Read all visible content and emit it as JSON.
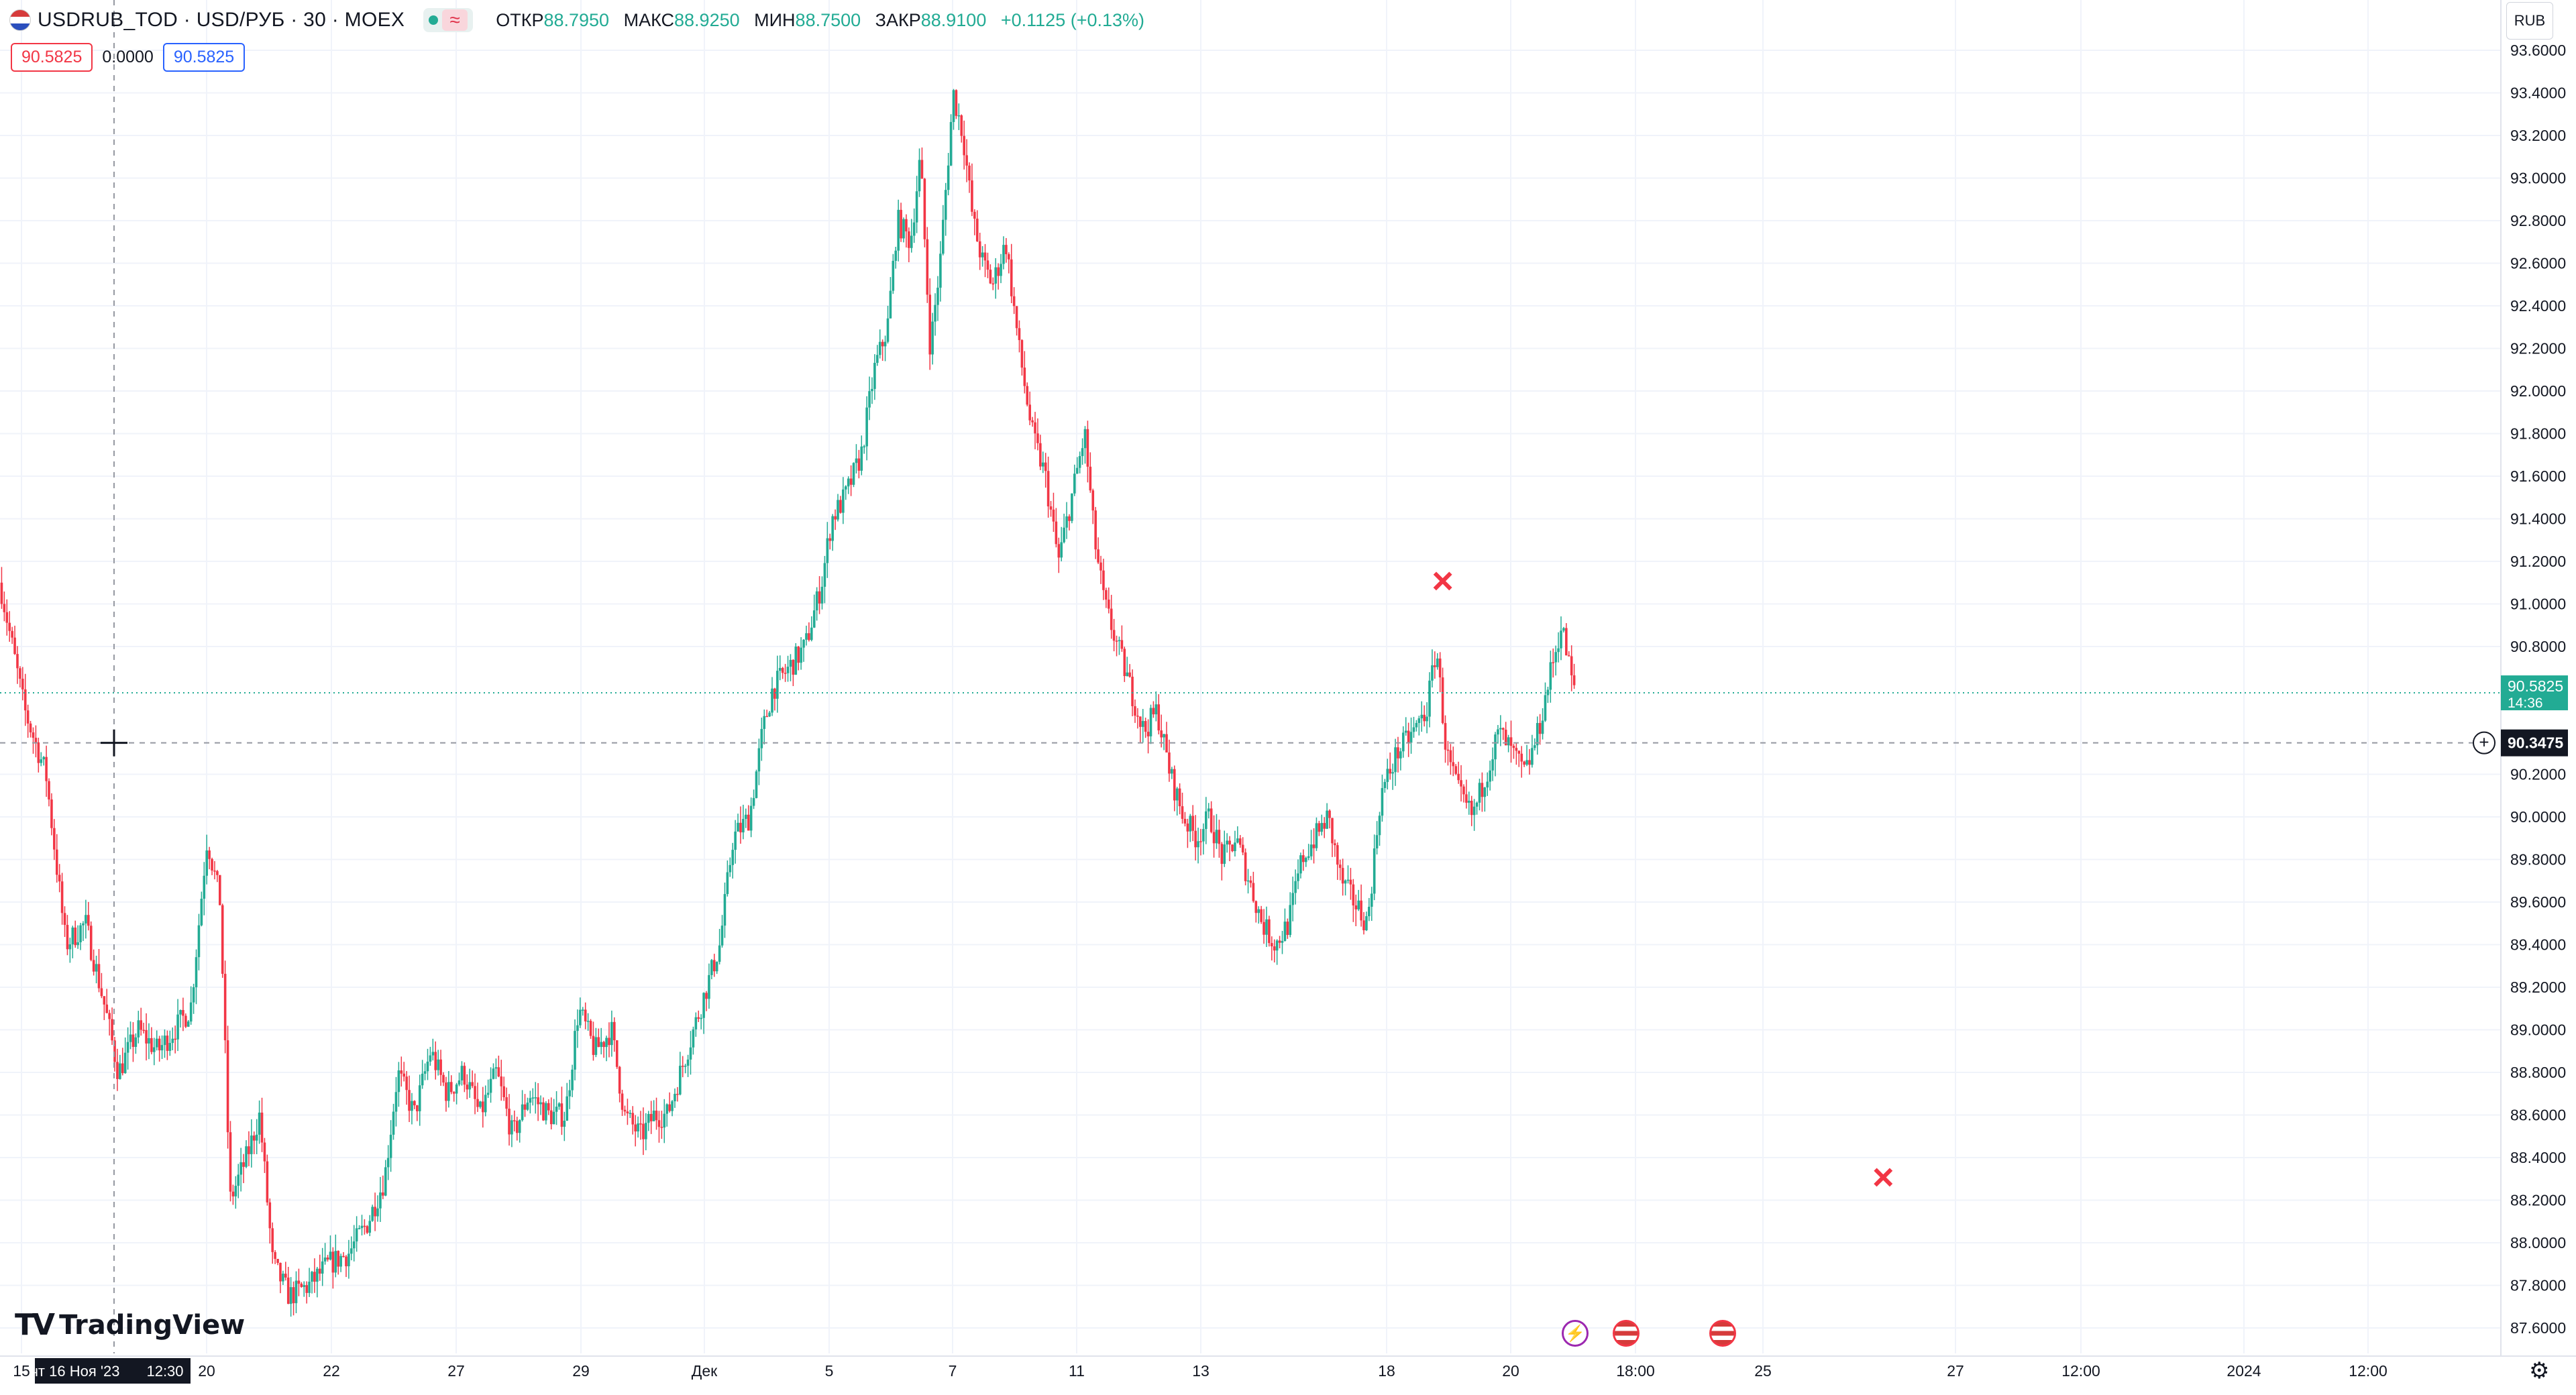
{
  "header": {
    "symbol_line": "USDRUB_TOD · USD/РУБ · 30 · MOEX",
    "open_label": "ОТКР",
    "open_value": "88.7950",
    "high_label": "МАКС",
    "high_value": "88.9250",
    "low_label": "МИН",
    "low_value": "88.7500",
    "close_label": "ЗАКР",
    "close_value": "88.9100",
    "change": "+0.1125 (+0.13%)",
    "wave_icon": "≈",
    "bid": "90.5825",
    "spread": "0.0000",
    "ask": "90.5825"
  },
  "currency": "RUB",
  "logo_text": "TradingView",
  "colors": {
    "up": "#22ab94",
    "down": "#f23645",
    "grid": "#f0f3fa",
    "crosshair": "#9598a1"
  },
  "icons": {
    "dividend_event": "lightning-icon",
    "us_events": "us-flag-icon",
    "settings": "gear-icon"
  },
  "chart_data": {
    "type": "candlestick",
    "interval": "30",
    "price_axis": {
      "ticks": [
        "93.6000",
        "93.4000",
        "93.2000",
        "93.0000",
        "92.8000",
        "92.6000",
        "92.4000",
        "92.2000",
        "92.0000",
        "91.8000",
        "91.6000",
        "91.4000",
        "91.2000",
        "91.0000",
        "90.8000",
        "90.2000",
        "90.0000",
        "89.8000",
        "89.6000",
        "89.4000",
        "89.2000",
        "89.0000",
        "88.8000",
        "88.6000",
        "88.4000",
        "88.2000",
        "88.0000",
        "87.8000",
        "87.6000"
      ],
      "range": [
        87.5,
        93.7
      ]
    },
    "time_axis": {
      "labels": [
        "15",
        "20",
        "22",
        "27",
        "29",
        "Дек",
        "5",
        "7",
        "11",
        "13",
        "18",
        "20",
        "18:00",
        "25",
        "27",
        "12:00",
        "2024",
        "12:00"
      ]
    },
    "last_price": "90.5825",
    "countdown": "14:36",
    "crosshair": {
      "price": "90.3475",
      "time": "чт 16 Ноя '23",
      "time_clock": "12:30"
    },
    "price_path": [
      [
        0,
        91.1
      ],
      [
        15,
        90.5
      ],
      [
        28,
        90.2
      ],
      [
        40,
        89.4
      ],
      [
        52,
        89.5
      ],
      [
        64,
        89.1
      ],
      [
        72,
        88.8
      ],
      [
        84,
        89.0
      ],
      [
        96,
        88.9
      ],
      [
        106,
        89.0
      ],
      [
        116,
        89.1
      ],
      [
        126,
        89.9
      ],
      [
        134,
        89.6
      ],
      [
        140,
        88.2
      ],
      [
        150,
        88.4
      ],
      [
        158,
        88.6
      ],
      [
        166,
        87.9
      ],
      [
        176,
        87.75
      ],
      [
        188,
        87.8
      ],
      [
        200,
        87.9
      ],
      [
        212,
        87.95
      ],
      [
        224,
        88.1
      ],
      [
        234,
        88.3
      ],
      [
        242,
        88.8
      ],
      [
        252,
        88.6
      ],
      [
        262,
        88.9
      ],
      [
        272,
        88.7
      ],
      [
        282,
        88.8
      ],
      [
        292,
        88.6
      ],
      [
        302,
        88.8
      ],
      [
        312,
        88.5
      ],
      [
        322,
        88.7
      ],
      [
        334,
        88.6
      ],
      [
        344,
        88.6
      ],
      [
        352,
        89.1
      ],
      [
        362,
        88.9
      ],
      [
        372,
        89.0
      ],
      [
        380,
        88.6
      ],
      [
        390,
        88.5
      ],
      [
        398,
        88.6
      ],
      [
        406,
        88.6
      ],
      [
        414,
        88.8
      ],
      [
        422,
        89.0
      ],
      [
        430,
        89.2
      ],
      [
        438,
        89.4
      ],
      [
        446,
        89.9
      ],
      [
        456,
        90.0
      ],
      [
        464,
        90.4
      ],
      [
        470,
        90.6
      ],
      [
        480,
        90.7
      ],
      [
        490,
        90.8
      ],
      [
        500,
        91.1
      ],
      [
        506,
        91.4
      ],
      [
        514,
        91.5
      ],
      [
        524,
        91.7
      ],
      [
        532,
        92.1
      ],
      [
        540,
        92.3
      ],
      [
        546,
        92.8
      ],
      [
        554,
        92.7
      ],
      [
        560,
        93.1
      ],
      [
        566,
        92.2
      ],
      [
        572,
        92.6
      ],
      [
        580,
        93.4
      ],
      [
        586,
        93.2
      ],
      [
        592,
        92.8
      ],
      [
        598,
        92.6
      ],
      [
        604,
        92.5
      ],
      [
        612,
        92.7
      ],
      [
        620,
        92.2
      ],
      [
        628,
        91.8
      ],
      [
        636,
        91.6
      ],
      [
        644,
        91.2
      ],
      [
        652,
        91.5
      ],
      [
        660,
        91.8
      ],
      [
        666,
        91.3
      ],
      [
        672,
        91.0
      ],
      [
        680,
        90.8
      ],
      [
        688,
        90.6
      ],
      [
        696,
        90.4
      ],
      [
        704,
        90.5
      ],
      [
        712,
        90.2
      ],
      [
        720,
        90.0
      ],
      [
        728,
        89.9
      ],
      [
        736,
        90.0
      ],
      [
        744,
        89.8
      ],
      [
        752,
        89.9
      ],
      [
        760,
        89.7
      ],
      [
        768,
        89.5
      ],
      [
        776,
        89.4
      ],
      [
        784,
        89.5
      ],
      [
        792,
        89.8
      ],
      [
        800,
        89.9
      ],
      [
        808,
        90.0
      ],
      [
        816,
        89.7
      ],
      [
        824,
        89.6
      ],
      [
        832,
        89.5
      ],
      [
        840,
        90.1
      ],
      [
        850,
        90.3
      ],
      [
        860,
        90.4
      ],
      [
        868,
        90.5
      ],
      [
        874,
        90.8
      ],
      [
        880,
        90.3
      ],
      [
        888,
        90.1
      ],
      [
        896,
        90.0
      ],
      [
        904,
        90.2
      ],
      [
        912,
        90.4
      ],
      [
        920,
        90.3
      ],
      [
        928,
        90.2
      ],
      [
        936,
        90.4
      ],
      [
        944,
        90.7
      ],
      [
        950,
        90.9
      ],
      [
        958,
        90.58
      ]
    ],
    "markers": [
      {
        "label": "×",
        "at": [
          877,
          91.1
        ]
      },
      {
        "label": "×",
        "at": [
          1145,
          88.3
        ]
      }
    ]
  }
}
